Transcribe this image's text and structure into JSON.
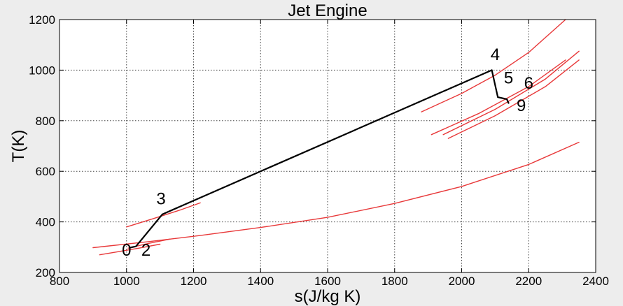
{
  "chart_data": {
    "type": "line",
    "title": "Jet Engine",
    "xlabel": "s(J/kg K)",
    "ylabel": "T(K)",
    "xlim": [
      800,
      2400
    ],
    "ylim": [
      200,
      1200
    ],
    "xticks": [
      800,
      1000,
      1200,
      1400,
      1600,
      1800,
      2000,
      2200,
      2400
    ],
    "yticks": [
      200,
      400,
      600,
      800,
      1000,
      1200
    ],
    "grid": true,
    "colors": {
      "cycle": "#000000",
      "isobar": "#e8393a",
      "plot_bg": "#ffffff",
      "grid": "#444444"
    },
    "series": [
      {
        "role": "cycle",
        "points": [
          [
            1010,
            298
          ],
          [
            1028,
            303
          ],
          [
            1107,
            430
          ],
          [
            2090,
            1000
          ],
          [
            2108,
            893
          ],
          [
            2135,
            885
          ],
          [
            2140,
            870
          ]
        ]
      },
      {
        "role": "isobar",
        "points": [
          [
            900,
            298
          ],
          [
            1060,
            321
          ],
          [
            1220,
            346
          ],
          [
            1400,
            378
          ],
          [
            1600,
            418
          ],
          [
            1800,
            473
          ],
          [
            2000,
            540
          ],
          [
            2200,
            627
          ],
          [
            2350,
            715
          ]
        ]
      },
      {
        "role": "isobar",
        "points": [
          [
            920,
            270
          ],
          [
            970,
            281
          ],
          [
            1040,
            297
          ],
          [
            1100,
            312
          ]
        ]
      },
      {
        "role": "isobar",
        "points": [
          [
            1005,
            296
          ],
          [
            1065,
            315
          ],
          [
            1130,
            332
          ]
        ]
      },
      {
        "role": "isobar",
        "points": [
          [
            1000,
            380
          ],
          [
            1080,
            413
          ],
          [
            1160,
            447
          ],
          [
            1220,
            475
          ]
        ]
      },
      {
        "role": "isobar",
        "points": [
          [
            1880,
            835
          ],
          [
            2000,
            908
          ],
          [
            2100,
            980
          ],
          [
            2200,
            1070
          ],
          [
            2310,
            1200
          ]
        ]
      },
      {
        "role": "isobar",
        "points": [
          [
            1910,
            745
          ],
          [
            2050,
            828
          ],
          [
            2200,
            935
          ],
          [
            2310,
            1040
          ]
        ]
      },
      {
        "role": "isobar",
        "points": [
          [
            1945,
            745
          ],
          [
            2100,
            845
          ],
          [
            2250,
            965
          ],
          [
            2350,
            1075
          ]
        ]
      },
      {
        "role": "isobar",
        "points": [
          [
            1960,
            730
          ],
          [
            2100,
            820
          ],
          [
            2250,
            935
          ],
          [
            2350,
            1040
          ]
        ]
      }
    ],
    "point_labels": [
      {
        "text": "0",
        "x": 1000,
        "y": 266
      },
      {
        "text": "2",
        "x": 1058,
        "y": 266
      },
      {
        "text": "3",
        "x": 1103,
        "y": 469
      },
      {
        "text": "4",
        "x": 2100,
        "y": 1040
      },
      {
        "text": "5",
        "x": 2140,
        "y": 947
      },
      {
        "text": "6",
        "x": 2200,
        "y": 926
      },
      {
        "text": "9",
        "x": 2178,
        "y": 838
      }
    ]
  }
}
